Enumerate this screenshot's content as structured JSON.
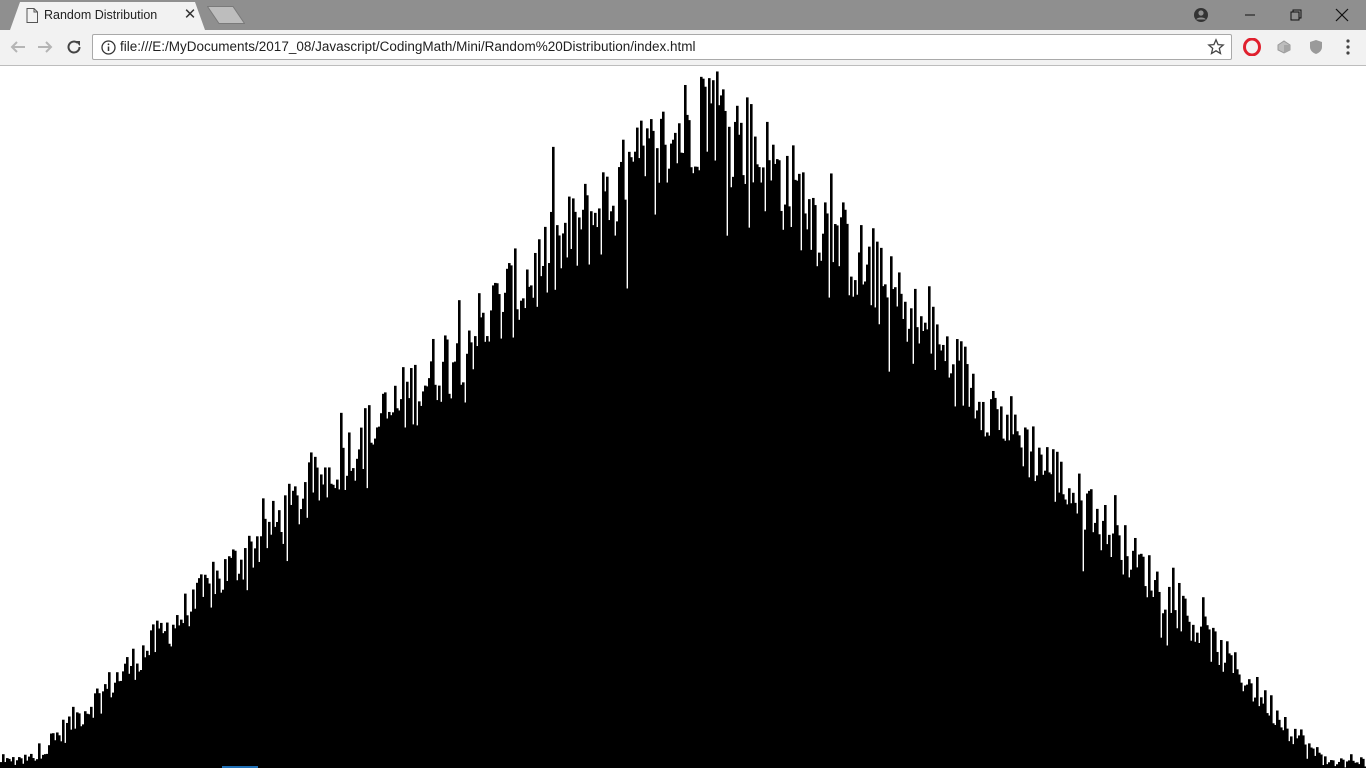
{
  "browser": {
    "tab": {
      "title": "Random Distribution"
    },
    "address_bar": {
      "url": "file:///E:/MyDocuments/2017_08/Javascript/CodingMath/Mini/Random%20Distribution/index.html"
    },
    "icons": {
      "back": "back-arrow-icon",
      "forward": "forward-arrow-icon",
      "reload": "reload-icon",
      "info": "info-icon",
      "bookmark": "star-icon",
      "profile": "profile-icon",
      "minimize": "minimize-icon",
      "restore": "restore-icon",
      "close": "close-icon",
      "menu": "three-dot-menu-icon"
    },
    "extensions": [
      "opera-extension-icon",
      "extension-icon",
      "shield-extension-icon"
    ]
  },
  "chart_data": {
    "type": "bar",
    "title": "",
    "xlabel": "",
    "ylabel": "",
    "description_shape": "triangular",
    "x_domain": [
      0,
      1
    ],
    "bin_count": 683,
    "peak_bin_fraction": 0.52,
    "fill_color": "#000000",
    "background_color": "#ffffff",
    "grid": false,
    "axes_visible": false,
    "note_values": "approximate triangular distribution: count per bin rises linearly from ~0 at x=0.02 to max near x=0.52 then falls linearly to ~0 at x=0.97, with random noise"
  },
  "colors": {
    "titlebar": "#8f8f8f",
    "toolbar": "#f2f2f2",
    "tab_active": "#f2f2f2",
    "opera_red": "#e0202e"
  }
}
